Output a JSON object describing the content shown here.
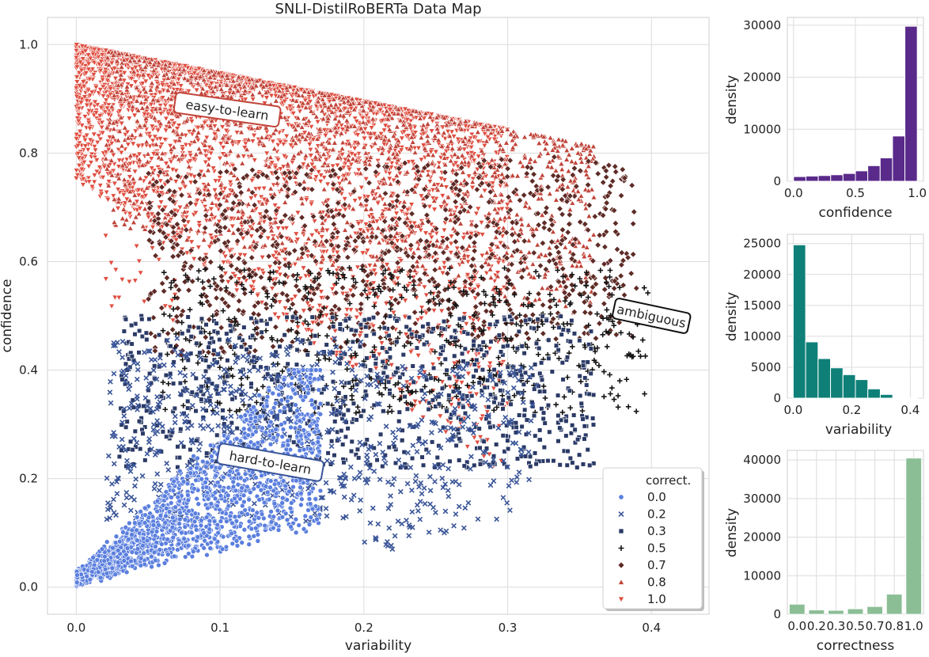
{
  "chart_data": [
    {
      "type": "scatter",
      "title": "SNLI-DistilRoBERTa Data Map",
      "xlabel": "variability",
      "ylabel": "confidence",
      "xlim": [
        -0.02,
        0.44
      ],
      "ylim": [
        -0.05,
        1.05
      ],
      "xticks": [
        "0.0",
        "0.1",
        "0.2",
        "0.3",
        "0.4"
      ],
      "yticks": [
        "0.0",
        "0.2",
        "0.4",
        "0.6",
        "0.8",
        "1.0"
      ],
      "grid": true,
      "legend": {
        "title": "correct.",
        "placement": "bottom-right",
        "entries": [
          {
            "label": "0.0",
            "marker": "circle",
            "color": "#5b7fde"
          },
          {
            "label": "0.2",
            "marker": "x",
            "color": "#3a5598"
          },
          {
            "label": "0.3",
            "marker": "square",
            "color": "#2b3a66"
          },
          {
            "label": "0.5",
            "marker": "plus",
            "color": "#141414"
          },
          {
            "label": "0.7",
            "marker": "diamond",
            "color": "#5e2b26"
          },
          {
            "label": "0.8",
            "marker": "triangle-up",
            "color": "#c0443a"
          },
          {
            "label": "1.0",
            "marker": "triangle-down",
            "color": "#de4e40"
          }
        ]
      },
      "annotations": [
        {
          "text": "easy-to-learn",
          "x": 0.105,
          "y": 0.88,
          "rotation": 8,
          "edge": "#c0443a"
        },
        {
          "text": "ambiguous",
          "x": 0.4,
          "y": 0.5,
          "rotation": 12,
          "edge": "#111111"
        },
        {
          "text": "hard-to-learn",
          "x": 0.135,
          "y": 0.23,
          "rotation": 10,
          "edge": "#3a5598"
        }
      ],
      "series": [
        {
          "name": "0.0",
          "region": {
            "x_min": 0.0,
            "x_max": 0.18,
            "y_min": 0.0,
            "y_max": 0.4
          }
        },
        {
          "name": "0.2",
          "region": {
            "x_min": 0.02,
            "x_max": 0.33,
            "y_min": 0.1,
            "y_max": 0.48
          }
        },
        {
          "name": "0.3",
          "region": {
            "x_min": 0.03,
            "x_max": 0.4,
            "y_min": 0.2,
            "y_max": 0.52
          }
        },
        {
          "name": "0.5",
          "region": {
            "x_min": 0.05,
            "x_max": 0.41,
            "y_min": 0.3,
            "y_max": 0.6
          }
        },
        {
          "name": "0.7",
          "region": {
            "x_min": 0.04,
            "x_max": 0.425,
            "y_min": 0.4,
            "y_max": 0.78
          }
        },
        {
          "name": "0.8",
          "region": {
            "x_min": 0.02,
            "x_max": 0.36,
            "y_min": 0.55,
            "y_max": 0.95
          }
        },
        {
          "name": "1.0",
          "region": {
            "x_min": 0.0,
            "x_max": 0.3,
            "y_min": 0.48,
            "y_max": 1.0
          }
        }
      ]
    },
    {
      "type": "bar",
      "xlabel": "confidence",
      "ylabel": "density",
      "color": "#5a2a8a",
      "bin_edges": [
        0.0,
        0.1,
        0.2,
        0.3,
        0.4,
        0.5,
        0.6,
        0.7,
        0.8,
        0.9,
        1.0
      ],
      "values": [
        900,
        1000,
        1100,
        1250,
        1500,
        2000,
        3000,
        4500,
        8700,
        29800
      ],
      "xticks": [
        "0.0",
        "0.5",
        "1.0"
      ],
      "yticks": [
        "0",
        "10000",
        "20000",
        "30000"
      ],
      "ylim": [
        0,
        31500
      ]
    },
    {
      "type": "bar",
      "xlabel": "variability",
      "ylabel": "density",
      "color": "#0f8078",
      "bin_edges": [
        0.0,
        0.0425,
        0.085,
        0.1275,
        0.17,
        0.2125,
        0.255,
        0.2975,
        0.34,
        0.3825,
        0.425
      ],
      "values": [
        24800,
        9100,
        6400,
        4900,
        3800,
        3000,
        1500,
        600,
        80,
        20
      ],
      "xticks": [
        "0.0",
        "0.2",
        "0.4"
      ],
      "yticks": [
        "0",
        "5000",
        "10000",
        "15000",
        "20000",
        "25000"
      ],
      "ylim": [
        0,
        26500
      ]
    },
    {
      "type": "bar",
      "xlabel": "correctness",
      "ylabel": "density",
      "color": "#8cbe96",
      "categories": [
        "0.0",
        "0.2",
        "0.3",
        "0.5",
        "0.7",
        "0.8",
        "1.0"
      ],
      "values": [
        2600,
        1100,
        1000,
        1400,
        2000,
        5200,
        40500
      ],
      "yticks": [
        "0",
        "10000",
        "20000",
        "30000",
        "40000"
      ],
      "ylim": [
        0,
        42500
      ]
    }
  ]
}
